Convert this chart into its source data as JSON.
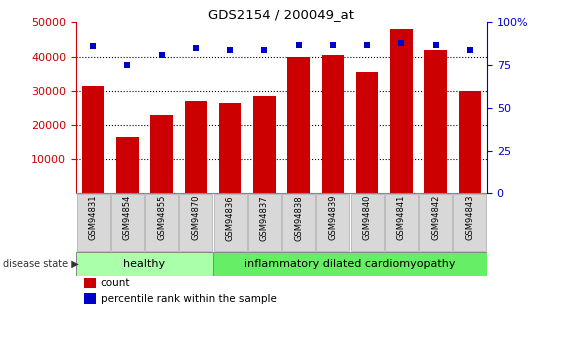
{
  "title": "GDS2154 / 200049_at",
  "categories": [
    "GSM94831",
    "GSM94854",
    "GSM94855",
    "GSM94870",
    "GSM94836",
    "GSM94837",
    "GSM94838",
    "GSM94839",
    "GSM94840",
    "GSM94841",
    "GSM94842",
    "GSM94843"
  ],
  "bar_values": [
    31500,
    16500,
    23000,
    27000,
    26500,
    28500,
    40000,
    40500,
    35500,
    48000,
    42000,
    30000
  ],
  "percentile_values": [
    86,
    75,
    81,
    85,
    84,
    84,
    87,
    87,
    87,
    88,
    87,
    84
  ],
  "bar_color": "#cc0000",
  "dot_color": "#0000cc",
  "ylim_left": [
    0,
    50000
  ],
  "ylim_right": [
    0,
    100
  ],
  "yticks_left": [
    10000,
    20000,
    30000,
    40000,
    50000
  ],
  "yticks_right": [
    0,
    25,
    50,
    75,
    100
  ],
  "healthy_count": 4,
  "disease_count": 8,
  "healthy_label": "healthy",
  "disease_label": "inflammatory dilated cardiomyopathy",
  "disease_state_label": "disease state",
  "legend_bar_label": "count",
  "legend_dot_label": "percentile rank within the sample",
  "healthy_color": "#aaffaa",
  "disease_color": "#66ee66",
  "tick_bg_color": "#d8d8d8",
  "tick_border_color": "#aaaaaa"
}
